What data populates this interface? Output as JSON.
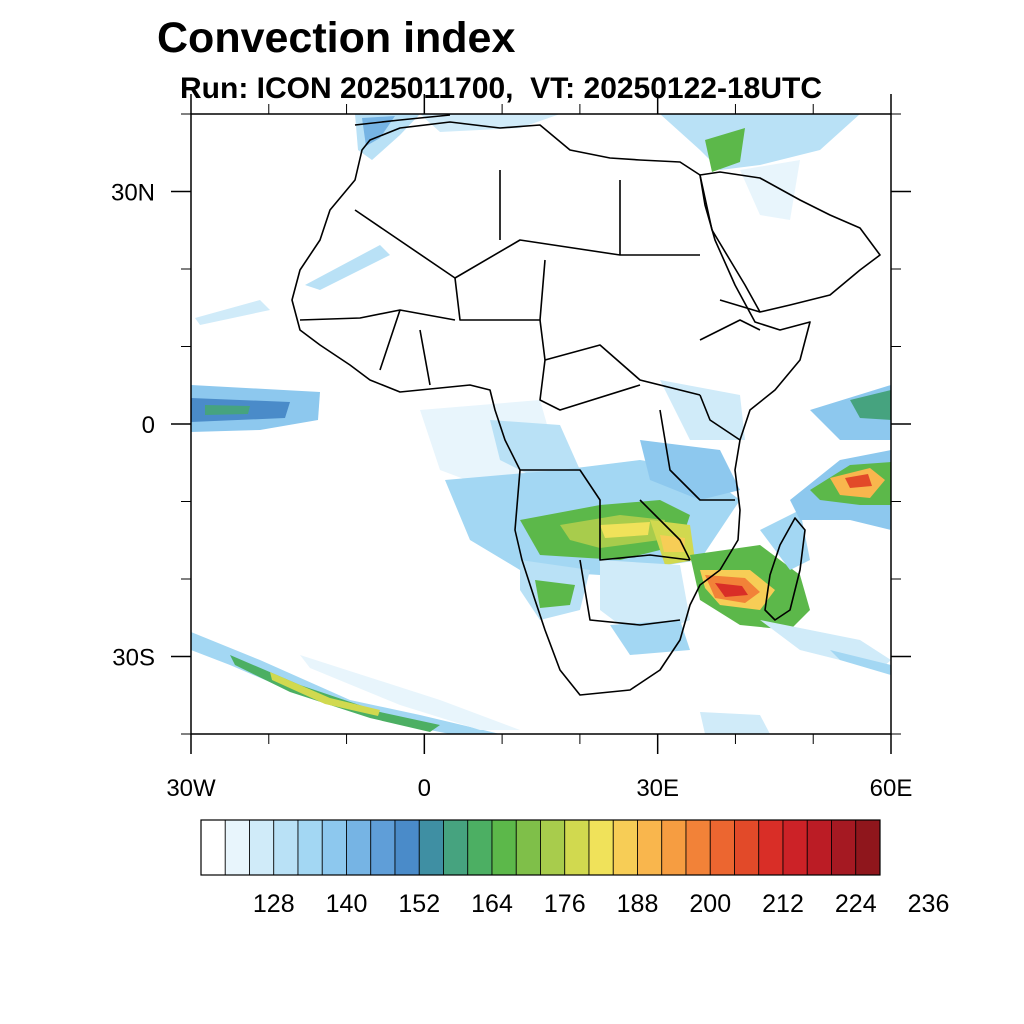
{
  "chart_data": {
    "type": "map",
    "title": "Convection index",
    "subtitle": "Run: ICON 2025011700,  VT: 20250122-18UTC",
    "longitude_range": [
      -30,
      60
    ],
    "latitude_range": [
      -40,
      40
    ],
    "lon_ticks": [
      {
        "value": -30,
        "label": "30W"
      },
      {
        "value": 0,
        "label": "0"
      },
      {
        "value": 30,
        "label": "30E"
      },
      {
        "value": 60,
        "label": "60E"
      }
    ],
    "lat_ticks": [
      {
        "value": 30,
        "label": "30N"
      },
      {
        "value": 0,
        "label": "0"
      },
      {
        "value": -30,
        "label": "30S"
      }
    ],
    "colorbar": {
      "levels_start": 116,
      "level_step": 4,
      "labels": [
        "128",
        "140",
        "152",
        "164",
        "176",
        "188",
        "200",
        "212",
        "224",
        "236"
      ],
      "colors": [
        "#ffffff",
        "#e8f5fc",
        "#d0ebf9",
        "#b9e1f6",
        "#a3d7f3",
        "#8dc8ee",
        "#76b4e4",
        "#5f9ed8",
        "#4a8bc9",
        "#3f8fa3",
        "#46a37f",
        "#4caf63",
        "#5cb84a",
        "#7fbf49",
        "#a8cc4c",
        "#d1d94f",
        "#f0e25a",
        "#f7cd56",
        "#f9b64d",
        "#f69d41",
        "#f28238",
        "#ec6630",
        "#e24a29",
        "#d92e27",
        "#cc2227",
        "#bb1c25",
        "#a51922",
        "#8f161c"
      ]
    }
  }
}
